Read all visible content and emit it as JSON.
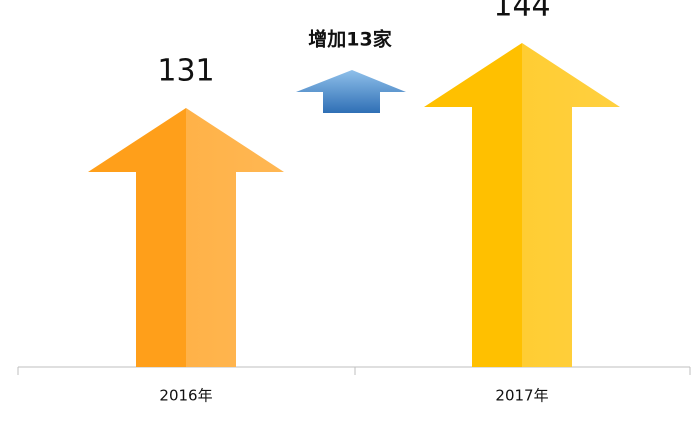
{
  "chart_data": {
    "type": "arrow-bar",
    "categories": [
      "2016年",
      "2017年"
    ],
    "values": [
      131,
      144
    ],
    "colors": [
      "#ff9f1a",
      "#ffc000"
    ],
    "annotation": "增加13家",
    "ylim": [
      79.2,
      150
    ]
  }
}
